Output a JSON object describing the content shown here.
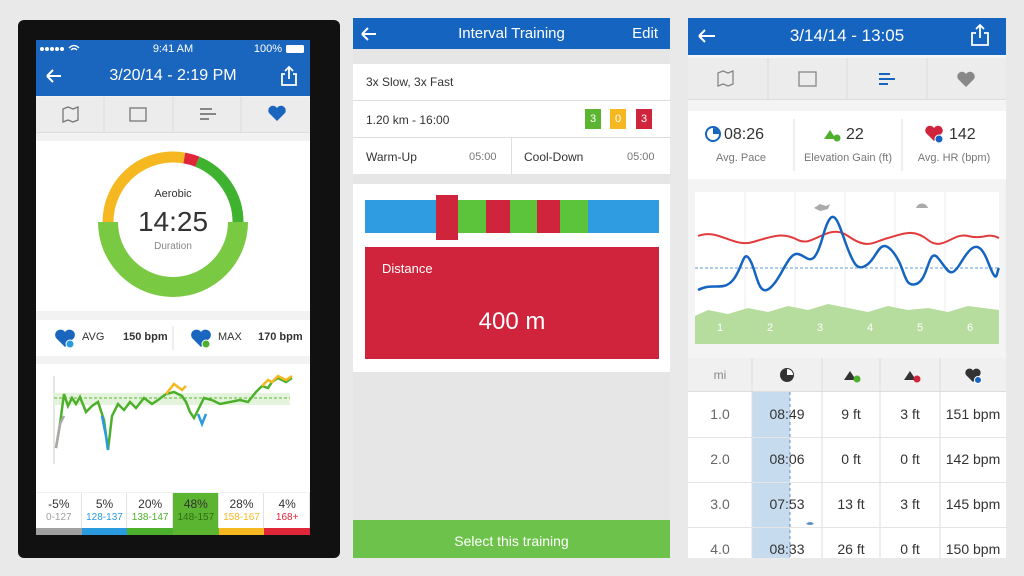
{
  "workout_summary": {
    "status_bar": {
      "time": "9:41 AM",
      "battery": "100%"
    },
    "header": {
      "title": "3/20/14 - 2:19 PM"
    },
    "ring": {
      "zone": "Aerobic",
      "time": "14:25",
      "caption": "Duration"
    },
    "heart_rate": {
      "avg_label": "AVG",
      "avg_value": "150 bpm",
      "max_label": "MAX",
      "max_value": "170 bpm"
    },
    "selected_zone": 3,
    "zones": [
      {
        "percent": "-5%",
        "range": "0-127",
        "color": "#a0a0a0"
      },
      {
        "percent": "5%",
        "range": "128-137",
        "color": "#2b9be0"
      },
      {
        "percent": "20%",
        "range": "138-147",
        "color": "#4db02c"
      },
      {
        "percent": "48%",
        "range": "148-157",
        "color": "#5cb531"
      },
      {
        "percent": "28%",
        "range": "158-167",
        "color": "#f5b820"
      },
      {
        "percent": "4%",
        "range": "168+",
        "color": "#e0273a"
      }
    ]
  },
  "interval_training": {
    "header": {
      "title": "Interval Training",
      "action": "Edit"
    },
    "name": "3x Slow, 3x Fast",
    "summary": "1.20 km - 16:00",
    "badges": [
      "3",
      "0",
      "3"
    ],
    "warm_up": {
      "label": "Warm-Up",
      "time": "05:00"
    },
    "cool_down": {
      "label": "Cool-Down",
      "time": "05:00"
    },
    "detail": {
      "label": "Distance",
      "value": "400 m"
    },
    "button": "Select this training"
  },
  "run_detail": {
    "header": {
      "title": "3/14/14 - 13:05"
    },
    "stats": [
      {
        "value": "08:26",
        "label": "Avg. Pace"
      },
      {
        "value": "22",
        "label": "Elevation Gain (ft)"
      },
      {
        "value": "142",
        "label": "Avg. HR (bpm)"
      }
    ],
    "chart_x_labels": [
      "1",
      "2",
      "3",
      "4",
      "5",
      "6"
    ],
    "table": {
      "unit": "mi",
      "rows": [
        [
          "1.0",
          "08:49",
          "9 ft",
          "3 ft",
          "151 bpm"
        ],
        [
          "2.0",
          "08:06",
          "0 ft",
          "0 ft",
          "142 bpm"
        ],
        [
          "3.0",
          "07:53",
          "13 ft",
          "3 ft",
          "145 bpm"
        ],
        [
          "4.0",
          "08:33",
          "26 ft",
          "0 ft",
          "150 bpm"
        ]
      ]
    }
  }
}
